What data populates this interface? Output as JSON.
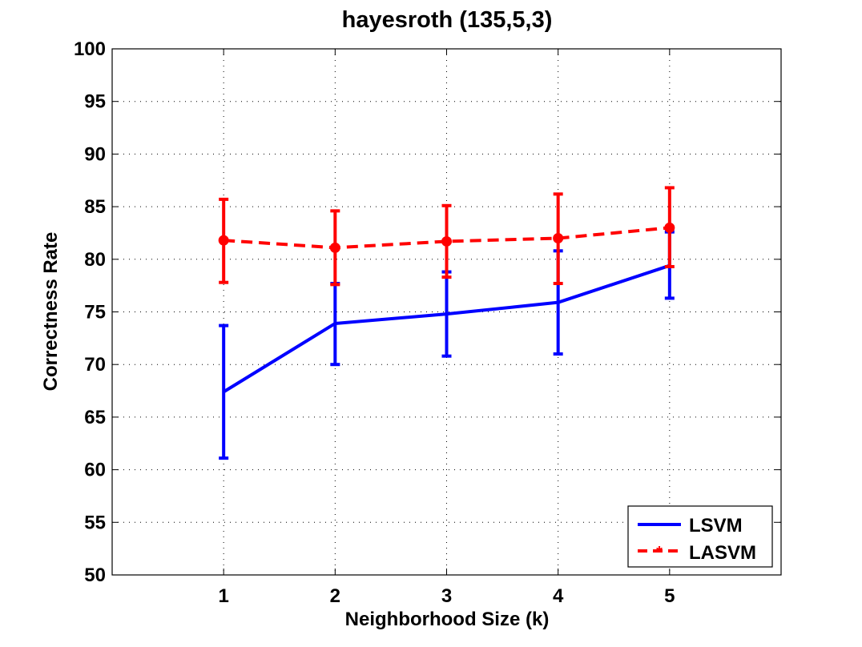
{
  "chart_data": {
    "type": "line",
    "title": "hayesroth (135,5,3)",
    "xlabel": "Neighborhood Size (k)",
    "ylabel": "Correctness Rate",
    "x": [
      1,
      2,
      3,
      4,
      5
    ],
    "xlim": [
      0,
      6
    ],
    "ylim": [
      50,
      100
    ],
    "xticks": [
      1,
      2,
      3,
      4,
      5
    ],
    "yticks": [
      50,
      55,
      60,
      65,
      70,
      75,
      80,
      85,
      90,
      95,
      100
    ],
    "grid": true,
    "legend_position": "bottom-right",
    "series": [
      {
        "name": "LSVM",
        "color": "#0000ff",
        "line_style": "solid",
        "marker": "none",
        "values": [
          67.4,
          73.9,
          74.8,
          75.9,
          79.4
        ],
        "error_low": [
          61.1,
          70.0,
          70.8,
          71.0,
          76.3
        ],
        "error_high": [
          73.7,
          77.7,
          78.8,
          80.8,
          82.6
        ]
      },
      {
        "name": "LASVM",
        "color": "#ff0000",
        "line_style": "dashed",
        "marker": "circle",
        "values": [
          81.8,
          81.1,
          81.7,
          82.0,
          83.0
        ],
        "error_low": [
          77.8,
          77.6,
          78.3,
          77.7,
          79.3
        ],
        "error_high": [
          85.7,
          84.6,
          85.1,
          86.2,
          86.8
        ]
      }
    ]
  }
}
